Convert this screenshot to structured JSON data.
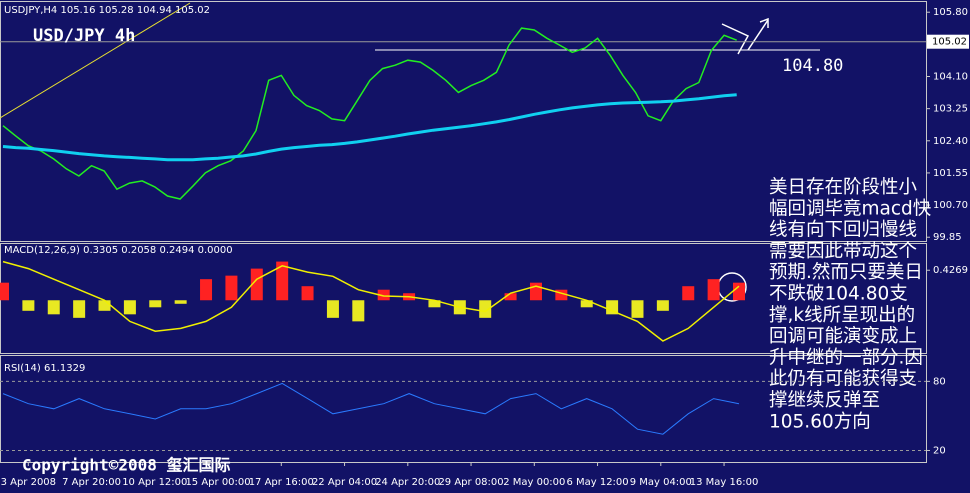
{
  "chart_data": [
    {
      "type": "line",
      "title": "USD/JPY 4h",
      "subtitle": "USDJPY,H4 105.16 105.28 104.94 105.02",
      "categories": [
        null,
        null,
        "3 Apr 2008",
        null,
        null,
        null,
        null,
        "7 Apr 20:00",
        null,
        null,
        null,
        null,
        "10 Apr 12:00",
        null,
        null,
        null,
        null,
        "15 Apr 00:00",
        null,
        null,
        null,
        null,
        "17 Apr 16:00",
        null,
        null,
        null,
        null,
        "22 Apr 04:00",
        null,
        null,
        null,
        null,
        "24 Apr 20:00",
        null,
        null,
        null,
        null,
        "29 Apr 08:00",
        null,
        null,
        null,
        null,
        "2 May 00:00",
        null,
        null,
        null,
        null,
        "6 May 12:00",
        null,
        null,
        null,
        null,
        "9 May 04:00",
        null,
        null,
        null,
        null,
        "13 May 16:00",
        null
      ],
      "series": [
        {
          "color": "#22ee22",
          "values": [
            102.8,
            102.53,
            102.27,
            102.13,
            101.92,
            101.66,
            101.47,
            101.74,
            101.6,
            101.12,
            101.28,
            101.34,
            101.18,
            100.94,
            100.86,
            101.2,
            101.55,
            101.74,
            101.87,
            102.13,
            102.67,
            104.0,
            104.13,
            103.6,
            103.33,
            103.2,
            102.98,
            102.93,
            103.46,
            104.0,
            104.31,
            104.4,
            104.53,
            104.48,
            104.26,
            104.0,
            103.68,
            103.86,
            104.0,
            104.21,
            104.93,
            105.38,
            105.33,
            105.11,
            104.93,
            104.74,
            104.85,
            105.11,
            104.66,
            104.13,
            103.68,
            103.06,
            102.93,
            103.46,
            103.78,
            103.94,
            104.79,
            105.19,
            105.06
          ]
        },
        {
          "color": "#10d0f0",
          "values": [
            102.25,
            102.22,
            102.2,
            102.17,
            102.14,
            102.1,
            102.06,
            102.03,
            102.0,
            101.98,
            101.96,
            101.94,
            101.92,
            101.9,
            101.9,
            101.9,
            101.92,
            101.94,
            101.97,
            102.0,
            102.05,
            102.12,
            102.18,
            102.22,
            102.25,
            102.28,
            102.3,
            102.33,
            102.37,
            102.42,
            102.47,
            102.52,
            102.58,
            102.63,
            102.68,
            102.72,
            102.76,
            102.8,
            102.85,
            102.9,
            102.96,
            103.03,
            103.1,
            103.16,
            103.22,
            103.27,
            103.31,
            103.35,
            103.38,
            103.4,
            103.41,
            103.42,
            103.43,
            103.45,
            103.48,
            103.51,
            103.55,
            103.59,
            103.62
          ]
        }
      ],
      "ylim": [
        99.75,
        106.07
      ],
      "yticks": [
        {
          "value": 105.8,
          "label": "105.80"
        },
        {
          "value": 104.1,
          "label": "104.10"
        },
        103.25,
        {
          "value": 102.4,
          "label": "102.40"
        },
        101.55,
        {
          "value": 100.7,
          "label": "100.70"
        },
        99.85
      ],
      "current_price": 105.02,
      "annotation": {
        "value": 104.8,
        "label": "104.80"
      },
      "commentary": [
        "美日存在阶段性小",
        "幅回调毕竟macd快",
        "线有向下回归慢线",
        "需要因此带动这个",
        "预期.然而只要美日",
        "不跌破104.80支",
        "撑,k线所呈现出的",
        "回调可能演变成上",
        "升中继的一部分.因",
        "此仍有可能获得支",
        "撑继续反弹至",
        "105.60方向"
      ],
      "copyright": "Copyright©2008 玺汇国际"
    },
    {
      "type": "macd",
      "title": "MACD(12,26,9) 0.3305 0.2058 0.2494 0.0000",
      "histogram": [
        0.25,
        -0.15,
        -0.2,
        -0.25,
        -0.15,
        -0.2,
        -0.1,
        -0.05,
        0.3,
        0.35,
        0.45,
        0.55,
        0.2,
        -0.25,
        -0.3,
        0.15,
        0.1,
        -0.1,
        -0.2,
        -0.25,
        0.1,
        0.25,
        0.15,
        -0.1,
        -0.2,
        -0.25,
        -0.15,
        0.2,
        0.3,
        0.25
      ],
      "signal": [
        0.55,
        0.45,
        0.3,
        0.15,
        0.0,
        -0.3,
        -0.44,
        -0.4,
        -0.3,
        -0.1,
        0.3,
        0.49,
        0.4,
        0.34,
        0.15,
        0.06,
        0.05,
        0.0,
        -0.1,
        -0.16,
        0.1,
        0.2,
        0.1,
        0.0,
        -0.15,
        -0.3,
        -0.58,
        -0.4,
        -0.1,
        0.2
      ],
      "up_color": "#ff2222",
      "down_color": "#e8e822",
      "signal_color": "#f0f000",
      "ylim": [
        -0.75,
        0.8
      ],
      "yticks": [
        0.4269
      ]
    },
    {
      "type": "rsi",
      "title": "RSI(14) 61.1329",
      "values": [
        69.4,
        60.6,
        56.2,
        65.0,
        56.2,
        51.8,
        47.3,
        56.2,
        56.2,
        60.6,
        69.4,
        78.2,
        65.0,
        51.8,
        56.2,
        60.6,
        69.4,
        60.6,
        56.2,
        51.8,
        65.0,
        69.4,
        56.2,
        65.0,
        56.2,
        38.5,
        34.1,
        51.8,
        65.0,
        60.6
      ],
      "color": "#2a7aff",
      "ylim": [
        10,
        102
      ],
      "yticks": [
        80,
        20
      ]
    }
  ]
}
